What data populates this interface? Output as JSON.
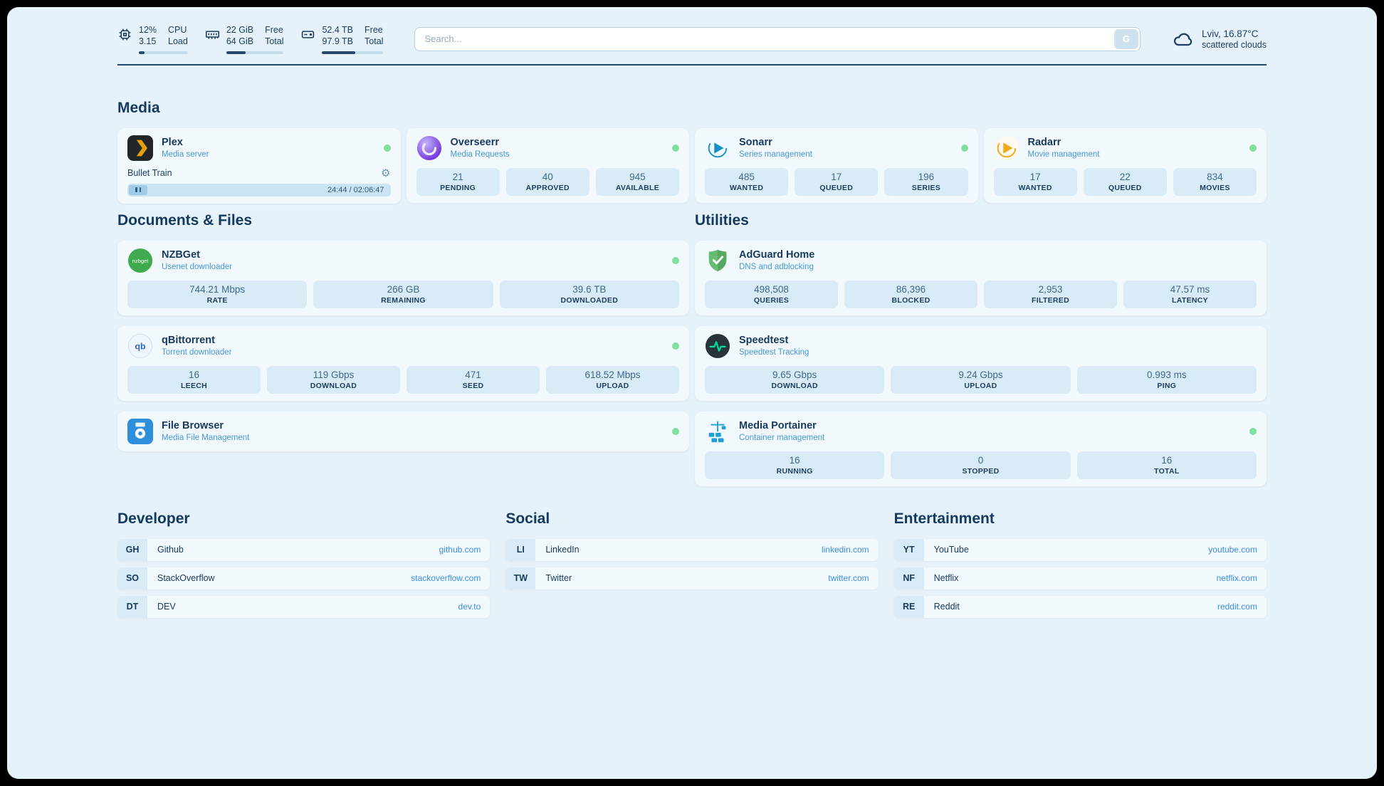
{
  "colors": {
    "status_online": "#7fdf9d",
    "link": "#3a8ddb",
    "accent_navy": "#17395c"
  },
  "topbar": {
    "cpu": {
      "value1": "12%",
      "value2": "3.15",
      "label1": "CPU",
      "label2": "Load",
      "fill": "12%"
    },
    "memory": {
      "value1": "22 GiB",
      "value2": "64 GiB",
      "label1": "Free",
      "label2": "Total",
      "fill": "34%"
    },
    "disk": {
      "value1": "52.4 TB",
      "value2": "97.9 TB",
      "label1": "Free",
      "label2": "Total",
      "fill": "54%"
    },
    "search": {
      "placeholder": "Search...",
      "button_label": "G"
    },
    "weather": {
      "location": "Lviv, 16.87°C",
      "condition": "scattered clouds"
    }
  },
  "media": {
    "title": "Media",
    "plex": {
      "name": "Plex",
      "subtitle": "Media server",
      "now_playing": "Bullet Train",
      "time": "24:44 / 02:06:47"
    },
    "overseerr": {
      "name": "Overseerr",
      "subtitle": "Media Requests",
      "stats": [
        {
          "value": "21",
          "label": "PENDING"
        },
        {
          "value": "40",
          "label": "APPROVED"
        },
        {
          "value": "945",
          "label": "AVAILABLE"
        }
      ]
    },
    "sonarr": {
      "name": "Sonarr",
      "subtitle": "Series management",
      "stats": [
        {
          "value": "485",
          "label": "WANTED"
        },
        {
          "value": "17",
          "label": "QUEUED"
        },
        {
          "value": "196",
          "label": "SERIES"
        }
      ]
    },
    "radarr": {
      "name": "Radarr",
      "subtitle": "Movie management",
      "stats": [
        {
          "value": "17",
          "label": "WANTED"
        },
        {
          "value": "22",
          "label": "QUEUED"
        },
        {
          "value": "834",
          "label": "MOVIES"
        }
      ]
    }
  },
  "documents": {
    "title": "Documents & Files",
    "nzbget": {
      "name": "NZBGet",
      "subtitle": "Usenet downloader",
      "stats": [
        {
          "value": "744.21 Mbps",
          "label": "RATE"
        },
        {
          "value": "266 GB",
          "label": "REMAINING"
        },
        {
          "value": "39.6 TB",
          "label": "DOWNLOADED"
        }
      ]
    },
    "qbittorrent": {
      "name": "qBittorrent",
      "subtitle": "Torrent downloader",
      "stats": [
        {
          "value": "16",
          "label": "LEECH"
        },
        {
          "value": "119 Gbps",
          "label": "DOWNLOAD"
        },
        {
          "value": "471",
          "label": "SEED"
        },
        {
          "value": "618.52 Mbps",
          "label": "UPLOAD"
        }
      ]
    },
    "filebrowser": {
      "name": "File Browser",
      "subtitle": "Media File Management"
    }
  },
  "utilities": {
    "title": "Utilities",
    "adguard": {
      "name": "AdGuard Home",
      "subtitle": "DNS and adblocking",
      "stats": [
        {
          "value": "498,508",
          "label": "QUERIES"
        },
        {
          "value": "86,396",
          "label": "BLOCKED"
        },
        {
          "value": "2,953",
          "label": "FILTERED"
        },
        {
          "value": "47.57 ms",
          "label": "LATENCY"
        }
      ]
    },
    "speedtest": {
      "name": "Speedtest",
      "subtitle": "Speedtest Tracking",
      "stats": [
        {
          "value": "9.65 Gbps",
          "label": "DOWNLOAD"
        },
        {
          "value": "9.24 Gbps",
          "label": "UPLOAD"
        },
        {
          "value": "0.993 ms",
          "label": "PING"
        }
      ]
    },
    "portainer": {
      "name": "Media Portainer",
      "subtitle": "Container management",
      "stats": [
        {
          "value": "16",
          "label": "RUNNING"
        },
        {
          "value": "0",
          "label": "STOPPED"
        },
        {
          "value": "16",
          "label": "TOTAL"
        }
      ]
    }
  },
  "bookmarks": {
    "developer": {
      "title": "Developer",
      "items": [
        {
          "abbr": "GH",
          "name": "Github",
          "url": "github.com"
        },
        {
          "abbr": "SO",
          "name": "StackOverflow",
          "url": "stackoverflow.com"
        },
        {
          "abbr": "DT",
          "name": "DEV",
          "url": "dev.to"
        }
      ]
    },
    "social": {
      "title": "Social",
      "items": [
        {
          "abbr": "LI",
          "name": "LinkedIn",
          "url": "linkedin.com"
        },
        {
          "abbr": "TW",
          "name": "Twitter",
          "url": "twitter.com"
        }
      ]
    },
    "entertainment": {
      "title": "Entertainment",
      "items": [
        {
          "abbr": "YT",
          "name": "YouTube",
          "url": "youtube.com"
        },
        {
          "abbr": "NF",
          "name": "Netflix",
          "url": "netflix.com"
        },
        {
          "abbr": "RE",
          "name": "Reddit",
          "url": "reddit.com"
        }
      ]
    }
  }
}
